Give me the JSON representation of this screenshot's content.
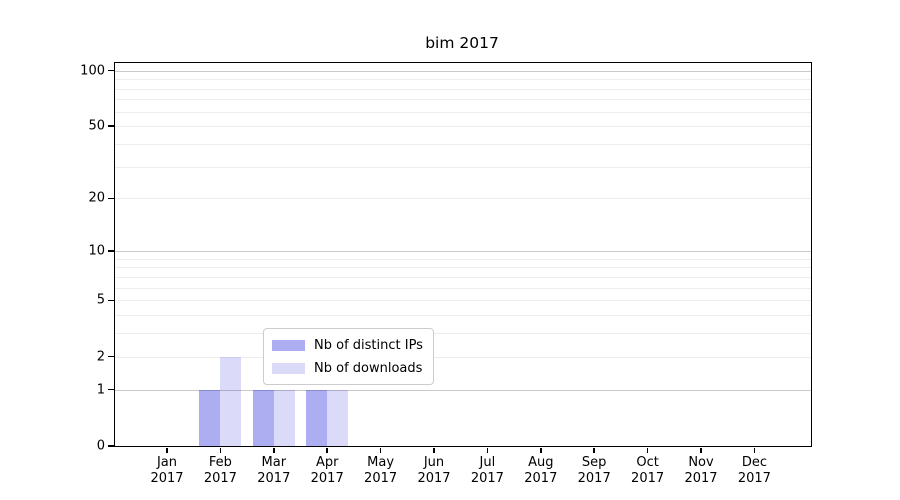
{
  "title": "bim 2017",
  "chart_data": {
    "type": "bar",
    "title": "bim 2017",
    "categories": [
      "Jan 2017",
      "Feb 2017",
      "Mar 2017",
      "Apr 2017",
      "May 2017",
      "Jun 2017",
      "Jul 2017",
      "Aug 2017",
      "Sep 2017",
      "Oct 2017",
      "Nov 2017",
      "Dec 2017"
    ],
    "x_tick_line1": [
      "Jan",
      "Feb",
      "Mar",
      "Apr",
      "May",
      "Jun",
      "Jul",
      "Aug",
      "Sep",
      "Oct",
      "Nov",
      "Dec"
    ],
    "x_tick_line2": "2017",
    "series": [
      {
        "name": "Nb of distinct IPs",
        "color": "rgba(0,0,215,0.32)",
        "values": [
          0,
          1,
          1,
          1,
          0,
          0,
          0,
          0,
          0,
          0,
          0,
          0
        ]
      },
      {
        "name": "Nb of downloads",
        "color": "rgba(0,0,215,0.14)",
        "values": [
          0,
          2,
          1,
          1,
          0,
          0,
          0,
          0,
          0,
          0,
          0,
          0
        ]
      }
    ],
    "y_axis": {
      "scale": "log1p",
      "ticks_labeled": [
        0,
        1,
        2,
        5,
        10,
        20,
        50,
        100
      ],
      "gridlines_major": [
        1,
        10,
        100
      ],
      "gridlines_minor": [
        2,
        3,
        4,
        5,
        6,
        7,
        8,
        9,
        20,
        30,
        40,
        50,
        60,
        70,
        80,
        90
      ],
      "ymax": 110
    },
    "legend": {
      "position": "lower center",
      "items": [
        "Nb of distinct IPs",
        "Nb of downloads"
      ]
    },
    "colors": {
      "major_grid": "#c9c9c9",
      "minor_grid": "#ededed",
      "spine": "#000000",
      "text": "#000000",
      "legend_border": "#cccccc",
      "background": "#ffffff"
    }
  }
}
